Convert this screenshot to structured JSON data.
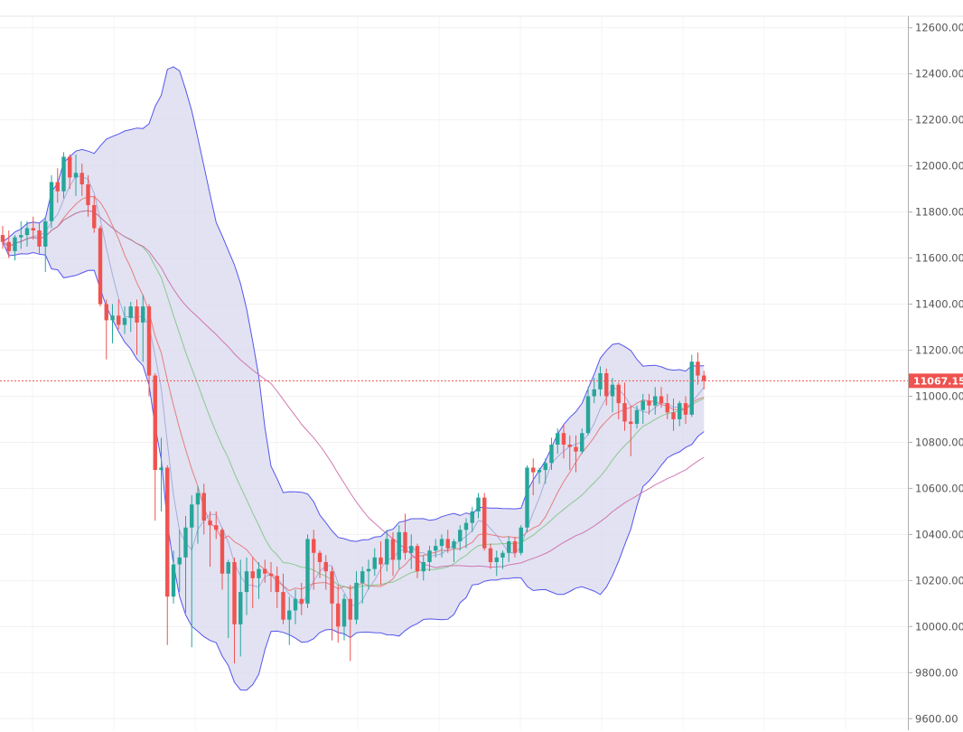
{
  "chart_data": {
    "type": "candlestick",
    "y_axis": {
      "ticks": [
        "12600.00",
        "12400.00",
        "12200.00",
        "12000.00",
        "11800.00",
        "11600.00",
        "11400.00",
        "11200.00",
        "11000.00",
        "10800.00",
        "10600.00",
        "10400.00",
        "10200.00",
        "10000.00",
        "9800.00",
        "9600.00"
      ],
      "tick_values": [
        12600,
        12400,
        12200,
        12000,
        11800,
        11600,
        11400,
        11200,
        11000,
        10800,
        10600,
        10400,
        10200,
        10000,
        9800,
        9600
      ],
      "range": [
        9550,
        12650
      ]
    },
    "last_price": {
      "label": "11067.15",
      "value": 11067.15,
      "color": "#ef5350"
    },
    "colors": {
      "up": "#26a69a",
      "down": "#ef5350",
      "bollinger_band_line": "#5555ee",
      "bollinger_band_fill": "#d8d8ee",
      "ma_fast": "#9fa8da",
      "ma_medium": "#e57373",
      "ma_slow": "#81c784",
      "ma_long": "#ce6aa8"
    },
    "candles": [
      [
        11700,
        11740,
        11640,
        11670
      ],
      [
        11670,
        11720,
        11600,
        11630
      ],
      [
        11630,
        11700,
        11590,
        11690
      ],
      [
        11690,
        11760,
        11640,
        11700
      ],
      [
        11700,
        11760,
        11650,
        11730
      ],
      [
        11730,
        11780,
        11680,
        11720
      ],
      [
        11720,
        11750,
        11620,
        11650
      ],
      [
        11650,
        11780,
        11540,
        11760
      ],
      [
        11760,
        11960,
        11730,
        11930
      ],
      [
        11930,
        11990,
        11840,
        11890
      ],
      [
        11890,
        12060,
        11860,
        12040
      ],
      [
        12040,
        12050,
        11900,
        11950
      ],
      [
        11950,
        12050,
        11870,
        11970
      ],
      [
        11970,
        12010,
        11870,
        11920
      ],
      [
        11920,
        11960,
        11780,
        11830
      ],
      [
        11830,
        11870,
        11710,
        11730
      ],
      [
        11730,
        11740,
        11390,
        11400
      ],
      [
        11400,
        11420,
        11160,
        11330
      ],
      [
        11330,
        11400,
        11230,
        11350
      ],
      [
        11350,
        11420,
        11290,
        11310
      ],
      [
        11310,
        11390,
        11270,
        11340
      ],
      [
        11340,
        11410,
        11280,
        11390
      ],
      [
        11390,
        11420,
        11180,
        11320
      ],
      [
        11320,
        11440,
        11150,
        11390
      ],
      [
        11390,
        11400,
        11000,
        11090
      ],
      [
        11090,
        11100,
        10460,
        10680
      ],
      [
        10680,
        10820,
        10500,
        10690
      ],
      [
        10690,
        10700,
        9920,
        10130
      ],
      [
        10130,
        10330,
        10100,
        10270
      ],
      [
        10270,
        10420,
        10150,
        10300
      ],
      [
        10300,
        10480,
        10060,
        10430
      ],
      [
        10430,
        10570,
        9910,
        10530
      ],
      [
        10530,
        10610,
        10360,
        10580
      ],
      [
        10580,
        10620,
        10400,
        10460
      ],
      [
        10460,
        10500,
        10260,
        10440
      ],
      [
        10440,
        10500,
        10380,
        10420
      ],
      [
        10420,
        10430,
        10160,
        10230
      ],
      [
        10230,
        10290,
        9950,
        10280
      ],
      [
        10280,
        10300,
        9840,
        10010
      ],
      [
        10010,
        10290,
        9870,
        10150
      ],
      [
        10150,
        10300,
        10050,
        10240
      ],
      [
        10240,
        10300,
        10080,
        10210
      ],
      [
        10210,
        10280,
        10120,
        10250
      ],
      [
        10250,
        10290,
        10190,
        10230
      ],
      [
        10230,
        10280,
        10150,
        10220
      ],
      [
        10220,
        10260,
        10080,
        10150
      ],
      [
        10150,
        10230,
        10010,
        10030
      ],
      [
        10030,
        10130,
        9920,
        10070
      ],
      [
        10070,
        10160,
        10010,
        10120
      ],
      [
        10120,
        10190,
        10050,
        10100
      ],
      [
        10100,
        10400,
        10080,
        10380
      ],
      [
        10380,
        10420,
        10160,
        10320
      ],
      [
        10320,
        10330,
        10210,
        10280
      ],
      [
        10280,
        10310,
        10160,
        10240
      ],
      [
        10240,
        10260,
        9940,
        10100
      ],
      [
        10100,
        10180,
        9930,
        10000
      ],
      [
        10000,
        10140,
        9940,
        10120
      ],
      [
        10120,
        10180,
        9850,
        10030
      ],
      [
        10030,
        10240,
        10010,
        10190
      ],
      [
        10190,
        10260,
        10100,
        10240
      ],
      [
        10240,
        10290,
        10160,
        10250
      ],
      [
        10250,
        10340,
        10220,
        10300
      ],
      [
        10300,
        10370,
        10180,
        10270
      ],
      [
        10270,
        10420,
        10240,
        10380
      ],
      [
        10380,
        10410,
        10220,
        10290
      ],
      [
        10290,
        10440,
        10250,
        10410
      ],
      [
        10410,
        10490,
        10290,
        10320
      ],
      [
        10320,
        10400,
        10250,
        10350
      ],
      [
        10350,
        10360,
        10210,
        10240
      ],
      [
        10240,
        10310,
        10200,
        10280
      ],
      [
        10280,
        10350,
        10240,
        10330
      ],
      [
        10330,
        10380,
        10300,
        10350
      ],
      [
        10350,
        10400,
        10300,
        10380
      ],
      [
        10380,
        10420,
        10320,
        10340
      ],
      [
        10340,
        10380,
        10280,
        10370
      ],
      [
        10370,
        10440,
        10330,
        10420
      ],
      [
        10420,
        10470,
        10340,
        10450
      ],
      [
        10450,
        10520,
        10410,
        10500
      ],
      [
        10500,
        10580,
        10470,
        10560
      ],
      [
        10560,
        10580,
        10330,
        10340
      ],
      [
        10340,
        10360,
        10250,
        10280
      ],
      [
        10280,
        10330,
        10220,
        10300
      ],
      [
        10300,
        10330,
        10250,
        10320
      ],
      [
        10320,
        10390,
        10280,
        10370
      ],
      [
        10370,
        10390,
        10300,
        10320
      ],
      [
        10320,
        10440,
        10310,
        10430
      ],
      [
        10430,
        10700,
        10410,
        10690
      ],
      [
        10690,
        10730,
        10570,
        10670
      ],
      [
        10670,
        10690,
        10620,
        10680
      ],
      [
        10680,
        10730,
        10620,
        10710
      ],
      [
        10710,
        10820,
        10680,
        10790
      ],
      [
        10790,
        10860,
        10750,
        10840
      ],
      [
        10840,
        10880,
        10730,
        10790
      ],
      [
        10790,
        10830,
        10680,
        10780
      ],
      [
        10780,
        10830,
        10670,
        10760
      ],
      [
        10760,
        10860,
        10750,
        10840
      ],
      [
        10840,
        11040,
        10830,
        11000
      ],
      [
        11000,
        11080,
        10970,
        11030
      ],
      [
        11030,
        11130,
        11000,
        11100
      ],
      [
        11100,
        11120,
        10960,
        11000
      ],
      [
        11000,
        11080,
        10930,
        11050
      ],
      [
        11050,
        11060,
        10900,
        10970
      ],
      [
        10970,
        11060,
        10850,
        10890
      ],
      [
        10890,
        10960,
        10740,
        10880
      ],
      [
        10880,
        10960,
        10860,
        10940
      ],
      [
        10940,
        11010,
        10880,
        10980
      ],
      [
        10980,
        11010,
        10920,
        10960
      ],
      [
        10960,
        11040,
        10920,
        11000
      ],
      [
        11000,
        11040,
        10950,
        10970
      ],
      [
        10970,
        11010,
        10900,
        10930
      ],
      [
        10930,
        10990,
        10850,
        10900
      ],
      [
        10900,
        10980,
        10870,
        10970
      ],
      [
        10970,
        11000,
        10880,
        10920
      ],
      [
        10920,
        11180,
        10910,
        11150
      ],
      [
        11150,
        11190,
        11050,
        11090
      ],
      [
        11090,
        11110,
        11030,
        11067
      ]
    ]
  }
}
